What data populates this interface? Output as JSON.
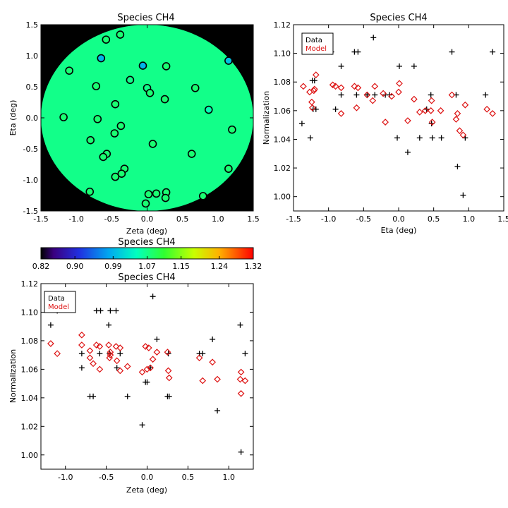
{
  "palette": {
    "data": "#000000",
    "model": "#dd1111",
    "background": "#000000"
  },
  "colorbar": {
    "title": "Species CH4",
    "ticks": [
      "0.82",
      "0.90",
      "0.99",
      "1.07",
      "1.15",
      "1.24",
      "1.32"
    ],
    "range": [
      0.82,
      1.32
    ],
    "colormap": "rainbow"
  },
  "chart_data": [
    {
      "type": "scatter",
      "title": "Species CH4",
      "xlabel": "Zeta (deg)",
      "ylabel": "Eta (deg)",
      "xlim": [
        -1.5,
        1.5
      ],
      "ylim": [
        -1.5,
        1.5
      ],
      "xticks": [
        "-1.5",
        "-1.0",
        "-0.5",
        "0.0",
        "0.5",
        "1.0",
        "1.5"
      ],
      "yticks": [
        "-1.5",
        "-1.0",
        "-0.5",
        "0.0",
        "0.5",
        "1.0",
        "1.5"
      ],
      "map_radius": 1.5,
      "map_value": 1.07,
      "points": [
        {
          "x": -0.38,
          "y": 1.34,
          "v": 1.08
        },
        {
          "x": -0.58,
          "y": 1.26,
          "v": 1.08
        },
        {
          "x": 1.15,
          "y": 0.92,
          "v": 1.0
        },
        {
          "x": -0.65,
          "y": 0.96,
          "v": 0.99
        },
        {
          "x": -0.06,
          "y": 0.84,
          "v": 0.99
        },
        {
          "x": 0.27,
          "y": 0.83,
          "v": 1.08
        },
        {
          "x": -1.1,
          "y": 0.76,
          "v": 1.08
        },
        {
          "x": -0.24,
          "y": 0.61,
          "v": 1.07
        },
        {
          "x": -0.72,
          "y": 0.51,
          "v": 1.08
        },
        {
          "x": 0.0,
          "y": 0.48,
          "v": 1.07
        },
        {
          "x": 0.68,
          "y": 0.48,
          "v": 1.08
        },
        {
          "x": 0.04,
          "y": 0.4,
          "v": 1.08
        },
        {
          "x": 0.25,
          "y": 0.3,
          "v": 1.08
        },
        {
          "x": -0.45,
          "y": 0.22,
          "v": 1.08
        },
        {
          "x": 0.87,
          "y": 0.13,
          "v": 1.05
        },
        {
          "x": -1.18,
          "y": 0.01,
          "v": 1.08
        },
        {
          "x": -0.7,
          "y": -0.02,
          "v": 1.08
        },
        {
          "x": -0.37,
          "y": -0.13,
          "v": 1.08
        },
        {
          "x": 1.2,
          "y": -0.19,
          "v": 1.08
        },
        {
          "x": -0.46,
          "y": -0.25,
          "v": 1.08
        },
        {
          "x": -0.8,
          "y": -0.36,
          "v": 1.08
        },
        {
          "x": 0.08,
          "y": -0.42,
          "v": 1.08
        },
        {
          "x": -0.57,
          "y": -0.58,
          "v": 1.08
        },
        {
          "x": 0.63,
          "y": -0.58,
          "v": 1.08
        },
        {
          "x": -0.62,
          "y": -0.63,
          "v": 1.08
        },
        {
          "x": -0.32,
          "y": -0.82,
          "v": 1.08
        },
        {
          "x": 1.15,
          "y": -0.82,
          "v": 1.08
        },
        {
          "x": -0.36,
          "y": -0.9,
          "v": 1.08
        },
        {
          "x": -0.45,
          "y": -0.95,
          "v": 1.08
        },
        {
          "x": 0.27,
          "y": -1.2,
          "v": 1.08
        },
        {
          "x": -0.81,
          "y": -1.19,
          "v": 1.08
        },
        {
          "x": 0.02,
          "y": -1.23,
          "v": 1.08
        },
        {
          "x": 0.13,
          "y": -1.22,
          "v": 1.08
        },
        {
          "x": 0.79,
          "y": -1.26,
          "v": 1.08
        },
        {
          "x": 0.26,
          "y": -1.29,
          "v": 1.08
        },
        {
          "x": -0.02,
          "y": -1.38,
          "v": 1.08
        }
      ]
    },
    {
      "type": "scatter",
      "title": "Species CH4",
      "xlabel": "Eta (deg)",
      "ylabel": "Normalization",
      "xlim": [
        -1.5,
        1.5
      ],
      "ylim": [
        0.99,
        1.12
      ],
      "xticks": [
        "-1.5",
        "-1.0",
        "-0.5",
        "0.0",
        "0.5",
        "1.0",
        "1.5"
      ],
      "yticks": [
        "1.00",
        "1.02",
        "1.04",
        "1.06",
        "1.08",
        "1.10",
        "1.12"
      ],
      "legend": [
        "Data",
        "Model"
      ],
      "series": [
        {
          "name": "Data",
          "marker": "plus",
          "points": [
            [
              -1.38,
              1.051
            ],
            [
              -1.26,
              1.041
            ],
            [
              -1.23,
              1.081
            ],
            [
              -1.2,
              1.081
            ],
            [
              -1.22,
              1.061
            ],
            [
              -1.18,
              1.061
            ],
            [
              -0.96,
              1.101
            ],
            [
              -0.9,
              1.061
            ],
            [
              -0.82,
              1.091
            ],
            [
              -0.82,
              1.071
            ],
            [
              -0.63,
              1.101
            ],
            [
              -0.58,
              1.101
            ],
            [
              -0.6,
              1.071
            ],
            [
              -0.45,
              1.071
            ],
            [
              -0.36,
              1.111
            ],
            [
              -0.34,
              1.071
            ],
            [
              -0.19,
              1.071
            ],
            [
              -0.13,
              1.071
            ],
            [
              -0.02,
              1.041
            ],
            [
              0.01,
              1.091
            ],
            [
              0.13,
              1.031
            ],
            [
              0.22,
              1.091
            ],
            [
              0.3,
              1.041
            ],
            [
              0.4,
              1.061
            ],
            [
              0.46,
              1.071
            ],
            [
              0.48,
              1.041
            ],
            [
              0.47,
              1.051
            ],
            [
              0.61,
              1.041
            ],
            [
              0.76,
              1.101
            ],
            [
              0.82,
              1.071
            ],
            [
              0.84,
              1.021
            ],
            [
              0.92,
              1.001
            ],
            [
              0.95,
              1.041
            ],
            [
              1.24,
              1.071
            ],
            [
              1.34,
              1.101
            ]
          ]
        },
        {
          "name": "Model",
          "marker": "diamond",
          "points": [
            [
              -1.36,
              1.077
            ],
            [
              -1.27,
              1.073
            ],
            [
              -1.24,
              1.066
            ],
            [
              -1.21,
              1.074
            ],
            [
              -1.2,
              1.075
            ],
            [
              -1.18,
              1.085
            ],
            [
              -1.23,
              1.062
            ],
            [
              -0.94,
              1.078
            ],
            [
              -0.9,
              1.077
            ],
            [
              -0.82,
              1.076
            ],
            [
              -0.82,
              1.058
            ],
            [
              -0.63,
              1.077
            ],
            [
              -0.58,
              1.076
            ],
            [
              -0.6,
              1.062
            ],
            [
              -0.45,
              1.071
            ],
            [
              -0.37,
              1.067
            ],
            [
              -0.34,
              1.077
            ],
            [
              -0.22,
              1.072
            ],
            [
              -0.19,
              1.052
            ],
            [
              -0.1,
              1.07
            ],
            [
              0.01,
              1.079
            ],
            [
              0.0,
              1.073
            ],
            [
              0.13,
              1.053
            ],
            [
              0.22,
              1.068
            ],
            [
              0.3,
              1.059
            ],
            [
              0.38,
              1.06
            ],
            [
              0.46,
              1.06
            ],
            [
              0.47,
              1.067
            ],
            [
              0.48,
              1.052
            ],
            [
              0.6,
              1.06
            ],
            [
              0.76,
              1.071
            ],
            [
              0.82,
              1.054
            ],
            [
              0.84,
              1.058
            ],
            [
              0.87,
              1.046
            ],
            [
              0.92,
              1.043
            ],
            [
              0.95,
              1.064
            ],
            [
              1.26,
              1.061
            ],
            [
              1.34,
              1.058
            ]
          ]
        }
      ]
    },
    {
      "type": "scatter",
      "title": "Species CH4",
      "xlabel": "Zeta (deg)",
      "ylabel": "Normalization",
      "xlim": [
        -1.3,
        1.3
      ],
      "ylim": [
        0.99,
        1.12
      ],
      "xticks": [
        "-1.0",
        "-0.5",
        "0.0",
        "0.5",
        "1.0"
      ],
      "yticks": [
        "1.00",
        "1.02",
        "1.04",
        "1.06",
        "1.08",
        "1.10",
        "1.12"
      ],
      "legend": [
        "Data",
        "Model"
      ],
      "series": [
        {
          "name": "Data",
          "marker": "plus",
          "points": [
            [
              -1.18,
              1.091
            ],
            [
              -1.1,
              1.101
            ],
            [
              -0.8,
              1.071
            ],
            [
              -0.8,
              1.061
            ],
            [
              -0.7,
              1.041
            ],
            [
              -0.66,
              1.041
            ],
            [
              -0.62,
              1.101
            ],
            [
              -0.57,
              1.101
            ],
            [
              -0.58,
              1.071
            ],
            [
              -0.47,
              1.091
            ],
            [
              -0.45,
              1.101
            ],
            [
              -0.38,
              1.101
            ],
            [
              -0.46,
              1.071
            ],
            [
              -0.37,
              1.061
            ],
            [
              -0.33,
              1.071
            ],
            [
              -0.24,
              1.041
            ],
            [
              -0.06,
              1.021
            ],
            [
              -0.02,
              1.051
            ],
            [
              0.0,
              1.051
            ],
            [
              0.04,
              1.061
            ],
            [
              0.07,
              1.111
            ],
            [
              0.12,
              1.081
            ],
            [
              0.25,
              1.041
            ],
            [
              0.27,
              1.041
            ],
            [
              0.26,
              1.071
            ],
            [
              0.64,
              1.071
            ],
            [
              0.68,
              1.071
            ],
            [
              0.8,
              1.081
            ],
            [
              0.86,
              1.031
            ],
            [
              1.14,
              1.091
            ],
            [
              1.15,
              1.002
            ],
            [
              1.2,
              1.071
            ]
          ]
        },
        {
          "name": "Model",
          "marker": "diamond",
          "points": [
            [
              -1.18,
              1.078
            ],
            [
              -1.1,
              1.071
            ],
            [
              -0.8,
              1.084
            ],
            [
              -0.8,
              1.077
            ],
            [
              -0.7,
              1.073
            ],
            [
              -0.7,
              1.068
            ],
            [
              -0.66,
              1.064
            ],
            [
              -0.62,
              1.077
            ],
            [
              -0.58,
              1.076
            ],
            [
              -0.58,
              1.06
            ],
            [
              -0.47,
              1.077
            ],
            [
              -0.45,
              1.072
            ],
            [
              -0.46,
              1.068
            ],
            [
              -0.45,
              1.07
            ],
            [
              -0.38,
              1.076
            ],
            [
              -0.37,
              1.066
            ],
            [
              -0.33,
              1.075
            ],
            [
              -0.33,
              1.059
            ],
            [
              -0.24,
              1.062
            ],
            [
              -0.06,
              1.058
            ],
            [
              -0.02,
              1.076
            ],
            [
              0.0,
              1.06
            ],
            [
              0.02,
              1.075
            ],
            [
              0.04,
              1.061
            ],
            [
              0.07,
              1.067
            ],
            [
              0.12,
              1.072
            ],
            [
              0.25,
              1.072
            ],
            [
              0.26,
              1.059
            ],
            [
              0.27,
              1.054
            ],
            [
              0.64,
              1.068
            ],
            [
              0.68,
              1.052
            ],
            [
              0.8,
              1.065
            ],
            [
              0.86,
              1.053
            ],
            [
              1.14,
              1.053
            ],
            [
              1.15,
              1.058
            ],
            [
              1.15,
              1.043
            ],
            [
              1.2,
              1.052
            ]
          ]
        }
      ]
    }
  ]
}
